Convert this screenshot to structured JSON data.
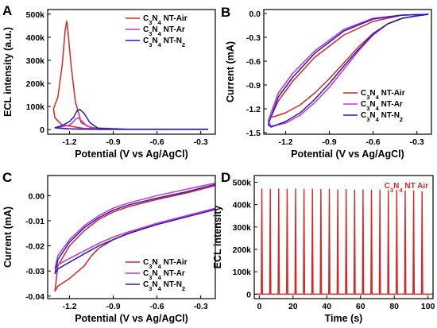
{
  "chart_data": [
    {
      "panel_label": "A",
      "type": "line",
      "xlabel": "Potential (V vs Ag/AgCl)",
      "ylabel": "ECL intensity (a.u.)",
      "xlim": [
        -1.35,
        -0.2
      ],
      "ylim": [
        -20000,
        520000
      ],
      "x_ticks": [
        "-1.2",
        "-0.9",
        "-0.6",
        "-0.3"
      ],
      "x_tick_values": [
        -1.2,
        -0.9,
        -0.6,
        -0.3
      ],
      "y_ticks": [
        "0",
        "100k",
        "200k",
        "300k",
        "400k",
        "500k"
      ],
      "y_tick_values": [
        0,
        100000,
        200000,
        300000,
        400000,
        500000
      ],
      "legend_position": "top-right",
      "series": [
        {
          "name": "C3N4 NT-Air",
          "color": "#d62728",
          "x": [
            -0.25,
            -0.8,
            -1.05,
            -1.12,
            -1.16,
            -1.19,
            -1.21,
            -1.22,
            -1.23,
            -1.25,
            -1.28,
            -1.31,
            -1.3,
            -1.25,
            -1.2,
            -1.15,
            -1.1,
            -1.0,
            -0.8,
            -0.25
          ],
          "y": [
            2000,
            2000,
            8000,
            30000,
            120000,
            280000,
            420000,
            470000,
            430000,
            280000,
            140000,
            90000,
            50000,
            20000,
            15000,
            10000,
            5000,
            3000,
            2000,
            2000
          ]
        },
        {
          "name": "C3N4 NT-Ar",
          "color": "#cc33cc",
          "x": [
            -0.25,
            -0.8,
            -1.0,
            -1.08,
            -1.12,
            -1.14,
            -1.16,
            -1.18,
            -1.2,
            -1.25,
            -1.3,
            -1.25,
            -1.2,
            -1.1,
            -1.0,
            -0.25
          ],
          "y": [
            1000,
            1000,
            3000,
            15000,
            40000,
            50000,
            45000,
            30000,
            20000,
            12000,
            8000,
            5000,
            3000,
            2000,
            1000,
            1000
          ]
        },
        {
          "name": "C3N4 NT-N2",
          "color": "#1f1fbf",
          "x": [
            -0.25,
            -0.8,
            -1.0,
            -1.06,
            -1.1,
            -1.13,
            -1.15,
            -1.17,
            -1.2,
            -1.25,
            -1.3,
            -1.25,
            -1.2,
            -1.1,
            -1.0,
            -0.25
          ],
          "y": [
            1000,
            1000,
            4000,
            30000,
            70000,
            88000,
            80000,
            55000,
            35000,
            18000,
            8000,
            5000,
            3000,
            2000,
            1000,
            1000
          ]
        }
      ]
    },
    {
      "panel_label": "B",
      "type": "line",
      "xlabel": "Potential (V vs Ag/AgCl)",
      "ylabel": "Current (mA)",
      "xlim": [
        -1.35,
        -0.2
      ],
      "ylim": [
        -1.52,
        0.05
      ],
      "x_ticks": [
        "-1.2",
        "-0.9",
        "-0.6",
        "-0.3"
      ],
      "x_tick_values": [
        -1.2,
        -0.9,
        -0.6,
        -0.3
      ],
      "y_ticks": [
        "0.0",
        "-0.3",
        "-0.6",
        "-0.9",
        "-1.2",
        "-1.5"
      ],
      "y_tick_values": [
        0,
        -0.3,
        -0.6,
        -0.9,
        -1.2,
        -1.5
      ],
      "legend_position": "bottom-right",
      "series": [
        {
          "name": "C3N4 NT-Air",
          "color": "#d62728",
          "x": [
            -0.22,
            -0.4,
            -0.6,
            -0.8,
            -1.0,
            -1.15,
            -1.25,
            -1.3,
            -1.28,
            -1.2,
            -1.1,
            -1.0,
            -0.9,
            -0.8,
            -0.7,
            -0.6,
            -0.5,
            -0.4,
            -0.3,
            -0.22
          ],
          "y": [
            -0.01,
            -0.02,
            -0.1,
            -0.27,
            -0.55,
            -0.85,
            -1.1,
            -1.3,
            -1.3,
            -1.25,
            -1.15,
            -1.0,
            -0.82,
            -0.62,
            -0.42,
            -0.25,
            -0.13,
            -0.06,
            -0.03,
            -0.01
          ]
        },
        {
          "name": "C3N4 NT-Ar",
          "color": "#cc33cc",
          "x": [
            -0.22,
            -0.4,
            -0.6,
            -0.8,
            -1.0,
            -1.15,
            -1.25,
            -1.32,
            -1.3,
            -1.2,
            -1.1,
            -1.0,
            -0.9,
            -0.8,
            -0.7,
            -0.6,
            -0.5,
            -0.4,
            -0.3,
            -0.22
          ],
          "y": [
            -0.01,
            -0.02,
            -0.06,
            -0.2,
            -0.47,
            -0.75,
            -1.0,
            -1.35,
            -1.42,
            -1.38,
            -1.28,
            -1.12,
            -0.93,
            -0.7,
            -0.47,
            -0.27,
            -0.13,
            -0.06,
            -0.03,
            -0.01
          ]
        },
        {
          "name": "C3N4 NT-N2",
          "color": "#1f1fbf",
          "x": [
            -0.22,
            -0.4,
            -0.6,
            -0.8,
            -1.0,
            -1.15,
            -1.25,
            -1.32,
            -1.3,
            -1.2,
            -1.1,
            -1.0,
            -0.9,
            -0.8,
            -0.7,
            -0.6,
            -0.5,
            -0.4,
            -0.3,
            -0.22
          ],
          "y": [
            -0.01,
            -0.02,
            -0.07,
            -0.22,
            -0.5,
            -0.8,
            -1.05,
            -1.4,
            -1.43,
            -1.36,
            -1.25,
            -1.08,
            -0.88,
            -0.66,
            -0.45,
            -0.26,
            -0.13,
            -0.06,
            -0.03,
            -0.01
          ]
        }
      ]
    },
    {
      "panel_label": "C",
      "type": "line",
      "xlabel": "Potential (V vs Ag/AgCl)",
      "ylabel": "Current (mA)",
      "xlim": [
        -1.35,
        -0.2
      ],
      "ylim": [
        -0.041,
        0.008
      ],
      "x_ticks": [
        "-1.2",
        "-0.9",
        "-0.6",
        "-0.3"
      ],
      "x_tick_values": [
        -1.2,
        -0.9,
        -0.6,
        -0.3
      ],
      "y_ticks": [
        "0.00",
        "-0.01",
        "-0.02",
        "-0.03",
        "-0.04"
      ],
      "y_tick_values": [
        0,
        -0.01,
        -0.02,
        -0.03,
        -0.04
      ],
      "legend_position": "bottom-right",
      "series": [
        {
          "name": "C3N4 NT-Air",
          "color": "#d62728",
          "x": [
            -0.2,
            -0.4,
            -0.6,
            -0.8,
            -0.9,
            -1.0,
            -1.05,
            -1.1,
            -1.2,
            -1.28,
            -1.3,
            -1.28,
            -1.2,
            -1.1,
            -1.0,
            -0.9,
            -0.8,
            -0.6,
            -0.4,
            -0.2
          ],
          "y": [
            -0.0055,
            -0.0085,
            -0.0115,
            -0.015,
            -0.0175,
            -0.021,
            -0.024,
            -0.028,
            -0.033,
            -0.036,
            -0.038,
            -0.028,
            -0.02,
            -0.014,
            -0.0095,
            -0.0065,
            -0.0045,
            -0.0015,
            0.001,
            0.004
          ]
        },
        {
          "name": "C3N4 NT-Ar",
          "color": "#cc33cc",
          "x": [
            -0.2,
            -0.4,
            -0.6,
            -0.8,
            -0.9,
            -1.0,
            -1.1,
            -1.2,
            -1.28,
            -1.3,
            -1.28,
            -1.2,
            -1.1,
            -1.0,
            -0.9,
            -0.8,
            -0.6,
            -0.4,
            -0.2
          ],
          "y": [
            -0.005,
            -0.008,
            -0.011,
            -0.0145,
            -0.0165,
            -0.019,
            -0.022,
            -0.025,
            -0.0275,
            -0.029,
            -0.024,
            -0.0175,
            -0.012,
            -0.008,
            -0.005,
            -0.003,
            0.0,
            0.0025,
            0.005
          ]
        },
        {
          "name": "C3N4 NT-N2",
          "color": "#1f1fbf",
          "x": [
            -0.2,
            -0.4,
            -0.6,
            -0.8,
            -0.9,
            -1.0,
            -1.1,
            -1.2,
            -1.28,
            -1.3,
            -1.28,
            -1.2,
            -1.1,
            -1.0,
            -0.9,
            -0.8,
            -0.6,
            -0.4,
            -0.2
          ],
          "y": [
            -0.0055,
            -0.0085,
            -0.0115,
            -0.0152,
            -0.0175,
            -0.02,
            -0.0232,
            -0.0265,
            -0.0292,
            -0.031,
            -0.0255,
            -0.0185,
            -0.0128,
            -0.0088,
            -0.0058,
            -0.0038,
            -0.001,
            0.0015,
            0.0045
          ]
        }
      ]
    },
    {
      "panel_label": "D",
      "type": "line",
      "xlabel": "Time (s)",
      "ylabel": "ECL intensity",
      "xlim": [
        -3,
        103
      ],
      "ylim": [
        -20000,
        530000
      ],
      "x_ticks": [
        "0",
        "20",
        "40",
        "60",
        "80",
        "100"
      ],
      "x_tick_values": [
        0,
        20,
        40,
        60,
        80,
        100
      ],
      "y_ticks": [
        "0",
        "100k",
        "200k",
        "300k",
        "400k",
        "500k"
      ],
      "y_tick_values": [
        0,
        100000,
        200000,
        300000,
        400000,
        500000
      ],
      "legend_position": "top-right",
      "annotation": "C3N4 NT Air",
      "series": [
        {
          "name": "C3N4 NT Air",
          "color": "#d62728",
          "peak_times": [
            1.5,
            6.5,
            11.5,
            16.5,
            21.5,
            26.5,
            31.5,
            36.5,
            41.5,
            46.5,
            51.5,
            56.5,
            61.5,
            66.5,
            71.5,
            76.5,
            81.5,
            86.5,
            91.5,
            96.5
          ],
          "peak_values": [
            470000,
            468000,
            470000,
            469000,
            470000,
            468000,
            469000,
            467000,
            468000,
            466000,
            467000,
            465000,
            466000,
            464000,
            465000,
            463000,
            464000,
            462000,
            462000,
            458000
          ]
        }
      ]
    }
  ]
}
